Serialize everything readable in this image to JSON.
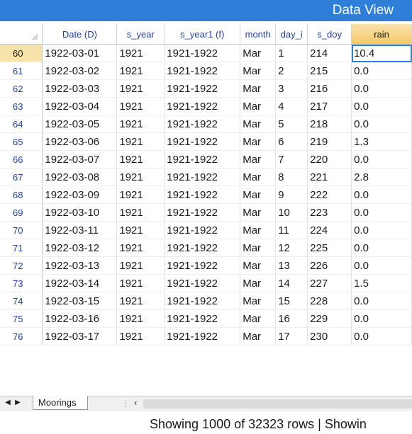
{
  "title": "Data View",
  "columns": [
    "Date (D)",
    "s_year",
    "s_year1 (f)",
    "month",
    "day_i",
    "s_doy",
    "rain"
  ],
  "rows": [
    {
      "n": "60",
      "cells": [
        "1922-03-01",
        "1921",
        "1921-1922",
        "Mar",
        "1",
        "214",
        "10.4"
      ]
    },
    {
      "n": "61",
      "cells": [
        "1922-03-02",
        "1921",
        "1921-1922",
        "Mar",
        "2",
        "215",
        "0.0"
      ]
    },
    {
      "n": "62",
      "cells": [
        "1922-03-03",
        "1921",
        "1921-1922",
        "Mar",
        "3",
        "216",
        "0.0"
      ]
    },
    {
      "n": "63",
      "cells": [
        "1922-03-04",
        "1921",
        "1921-1922",
        "Mar",
        "4",
        "217",
        "0.0"
      ]
    },
    {
      "n": "64",
      "cells": [
        "1922-03-05",
        "1921",
        "1921-1922",
        "Mar",
        "5",
        "218",
        "0.0"
      ]
    },
    {
      "n": "65",
      "cells": [
        "1922-03-06",
        "1921",
        "1921-1922",
        "Mar",
        "6",
        "219",
        "1.3"
      ]
    },
    {
      "n": "66",
      "cells": [
        "1922-03-07",
        "1921",
        "1921-1922",
        "Mar",
        "7",
        "220",
        "0.0"
      ]
    },
    {
      "n": "67",
      "cells": [
        "1922-03-08",
        "1921",
        "1921-1922",
        "Mar",
        "8",
        "221",
        "2.8"
      ]
    },
    {
      "n": "68",
      "cells": [
        "1922-03-09",
        "1921",
        "1921-1922",
        "Mar",
        "9",
        "222",
        "0.0"
      ]
    },
    {
      "n": "69",
      "cells": [
        "1922-03-10",
        "1921",
        "1921-1922",
        "Mar",
        "10",
        "223",
        "0.0"
      ]
    },
    {
      "n": "70",
      "cells": [
        "1922-03-11",
        "1921",
        "1921-1922",
        "Mar",
        "11",
        "224",
        "0.0"
      ]
    },
    {
      "n": "71",
      "cells": [
        "1922-03-12",
        "1921",
        "1921-1922",
        "Mar",
        "12",
        "225",
        "0.0"
      ]
    },
    {
      "n": "72",
      "cells": [
        "1922-03-13",
        "1921",
        "1921-1922",
        "Mar",
        "13",
        "226",
        "0.0"
      ]
    },
    {
      "n": "73",
      "cells": [
        "1922-03-14",
        "1921",
        "1921-1922",
        "Mar",
        "14",
        "227",
        "1.5"
      ]
    },
    {
      "n": "74",
      "cells": [
        "1922-03-15",
        "1921",
        "1921-1922",
        "Mar",
        "15",
        "228",
        "0.0"
      ]
    },
    {
      "n": "75",
      "cells": [
        "1922-03-16",
        "1921",
        "1921-1922",
        "Mar",
        "16",
        "229",
        "0.0"
      ]
    },
    {
      "n": "76",
      "cells": [
        "1922-03-17",
        "1921",
        "1921-1922",
        "Mar",
        "17",
        "230",
        "0.0"
      ]
    }
  ],
  "sheet_tab": "Moorings",
  "status": "Showing 1000 of 32323 rows | Showin",
  "nav": {
    "prev_icon": "triangle-left-icon",
    "next_icon": "triangle-right-icon",
    "scroll_left_icon": "chevron-left-icon"
  },
  "colors": {
    "accent": "#2d7fd8",
    "header_text": "#1f3fa8",
    "sorted_header": "#f4c86a",
    "current_row": "#f6e3a9"
  }
}
